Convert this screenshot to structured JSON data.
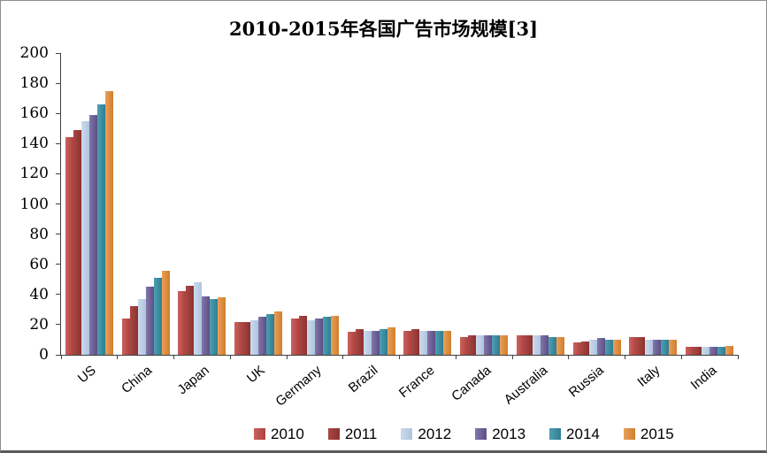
{
  "chart_data": {
    "type": "bar",
    "title": "2010-2015年各国广告市场规模[3]",
    "xlabel": "",
    "ylabel": "",
    "ylim": [
      0,
      200
    ],
    "yticks": [
      0,
      20,
      40,
      60,
      80,
      100,
      120,
      140,
      160,
      180,
      200
    ],
    "grid": false,
    "legend_position": "bottom",
    "categories": [
      "US",
      "China",
      "Japan",
      "UK",
      "Germany",
      "Brazil",
      "France",
      "Canada",
      "Australia",
      "Russia",
      "Italy",
      "India"
    ],
    "series": [
      {
        "name": "2010",
        "color": "#BE4B48",
        "color_light": "#C96360",
        "color_dark": "#AE403D",
        "values": [
          144,
          24,
          42,
          22,
          24,
          15,
          16,
          12,
          13,
          8,
          12,
          5
        ]
      },
      {
        "name": "2011",
        "color": "#9A3B38",
        "color_light": "#A84945",
        "color_dark": "#8C312F",
        "values": [
          149,
          32,
          46,
          22,
          26,
          17,
          17,
          13,
          13,
          9,
          12,
          5
        ]
      },
      {
        "name": "2012",
        "color": "#BCCFE6",
        "color_light": "#CBDBEE",
        "color_dark": "#AFC4DF",
        "values": [
          155,
          37,
          48,
          23,
          23,
          16,
          16,
          13,
          13,
          10,
          10,
          5
        ]
      },
      {
        "name": "2013",
        "color": "#6B5B95",
        "color_light": "#8276AB",
        "color_dark": "#5D4F86",
        "values": [
          159,
          45,
          39,
          25,
          24,
          16,
          16,
          13,
          13,
          11,
          10,
          5
        ]
      },
      {
        "name": "2014",
        "color": "#3E8FA4",
        "color_light": "#4E9FB2",
        "color_dark": "#2F7D92",
        "values": [
          166,
          51,
          37,
          27,
          25,
          17,
          16,
          13,
          12,
          10,
          10,
          5
        ]
      },
      {
        "name": "2015",
        "color": "#DE8C3F",
        "color_light": "#E9A058",
        "color_dark": "#D07E2D",
        "values": [
          175,
          56,
          38,
          29,
          26,
          18,
          16,
          13,
          12,
          10,
          10,
          6
        ]
      }
    ]
  },
  "colors": {
    "axis": "#3F3F3F",
    "frame_border": "#8E8E8E",
    "frame_border_bottom": "#595959",
    "background": "#FFFFFF",
    "text": "#000000"
  }
}
